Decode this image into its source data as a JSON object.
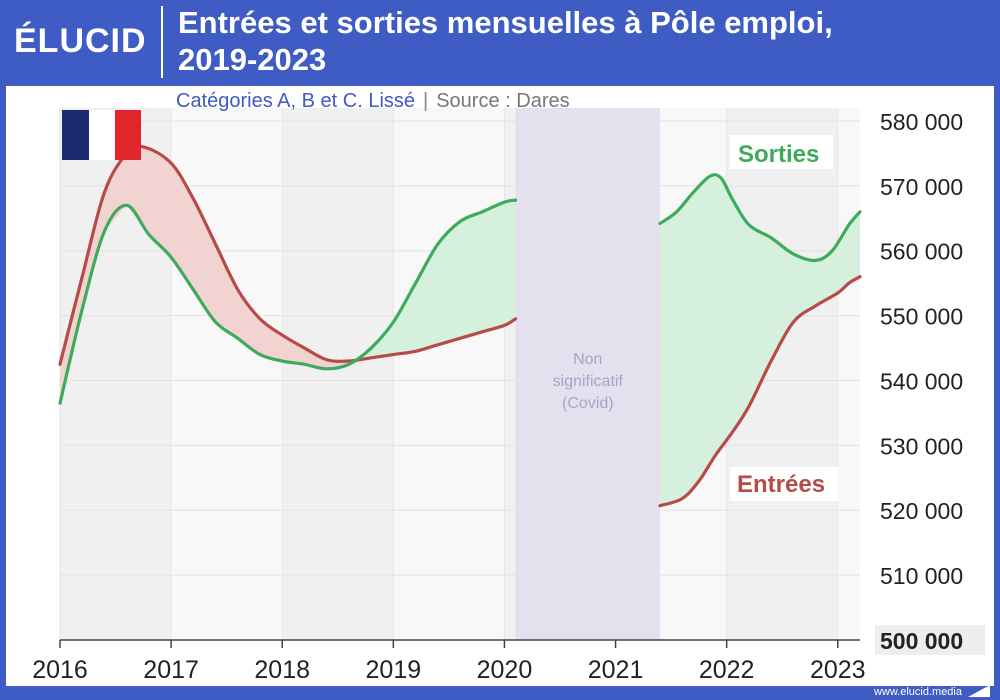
{
  "brand": {
    "logo": "ÉLUCID",
    "footer": "www.elucid.media"
  },
  "header": {
    "title_line1": "Entrées et sorties mensuelles à Pôle emploi,",
    "title_line2": "2019-2023"
  },
  "subtitle": {
    "categories": "Catégories A, B et C. Lissé",
    "separator": "|",
    "source": "Source : Dares"
  },
  "colors": {
    "sorties": "#3daa5c",
    "entrees": "#b54c48",
    "fill_sorties": "#d4efdc",
    "fill_entrees": "#f0d2cf",
    "covid_band": "#e5e0ee",
    "brand": "#3f5bc4"
  },
  "icons": {
    "flag": "france-flag-icon"
  },
  "chart_data": {
    "type": "line",
    "title": "Entrées et sorties mensuelles à Pôle emploi, 2019-2023",
    "subtitle": "Catégories A, B et C. Lissé",
    "x_ticks": [
      "2016",
      "2017",
      "2018",
      "2019",
      "2020",
      "2021",
      "2022",
      "2023"
    ],
    "y_ticks": [
      "500 000",
      "510 000",
      "520 000",
      "530 000",
      "540 000",
      "550 000",
      "560 000",
      "570 000",
      "580 000"
    ],
    "xlim": [
      2016,
      2023.2
    ],
    "ylim": [
      500000,
      582000
    ],
    "covid_band": {
      "from": 2020.1,
      "to": 2021.4,
      "label": [
        "Non",
        "significatif",
        "(Covid)"
      ]
    },
    "series": [
      {
        "name": "Sorties",
        "segments": [
          {
            "x": [
              2016.0,
              2016.2,
              2016.4,
              2016.6,
              2016.8,
              2017.0,
              2017.2,
              2017.4,
              2017.6,
              2017.8,
              2018.0,
              2018.2,
              2018.4,
              2018.6,
              2018.8,
              2019.0,
              2019.2,
              2019.4,
              2019.6,
              2019.8,
              2020.0,
              2020.1
            ],
            "y": [
              536500,
              551000,
              563000,
              567000,
              562500,
              559000,
              554000,
              549000,
              546500,
              544000,
              543000,
              542500,
              541800,
              542500,
              545000,
              549000,
              555000,
              561000,
              564500,
              566000,
              567500,
              567800
            ]
          },
          {
            "x": [
              2021.4,
              2021.55,
              2021.7,
              2021.85,
              2021.95,
              2022.05,
              2022.2,
              2022.4,
              2022.6,
              2022.8,
              2022.95,
              2023.1,
              2023.2
            ],
            "y": [
              564200,
              566000,
              569000,
              571500,
              571200,
              568000,
              564000,
              562000,
              559500,
              558500,
              560000,
              564000,
              566000
            ]
          }
        ]
      },
      {
        "name": "Entrées",
        "segments": [
          {
            "x": [
              2016.0,
              2016.2,
              2016.4,
              2016.6,
              2016.75,
              2017.0,
              2017.2,
              2017.4,
              2017.6,
              2017.8,
              2018.0,
              2018.2,
              2018.4,
              2018.6,
              2018.8,
              2019.0,
              2019.2,
              2019.4,
              2019.6,
              2019.8,
              2020.0,
              2020.1
            ],
            "y": [
              542500,
              556000,
              569000,
              575000,
              576000,
              573500,
              568000,
              561000,
              554000,
              549500,
              547000,
              545000,
              543200,
              543000,
              543500,
              544000,
              544500,
              545500,
              546500,
              547500,
              548500,
              549500
            ]
          },
          {
            "x": [
              2021.4,
              2021.6,
              2021.75,
              2021.9,
              2022.05,
              2022.2,
              2022.4,
              2022.6,
              2022.8,
              2023.0,
              2023.1,
              2023.2
            ],
            "y": [
              520700,
              521800,
              524500,
              528500,
              532000,
              536000,
              543000,
              549000,
              551500,
              553500,
              555000,
              556000
            ]
          }
        ]
      }
    ]
  }
}
